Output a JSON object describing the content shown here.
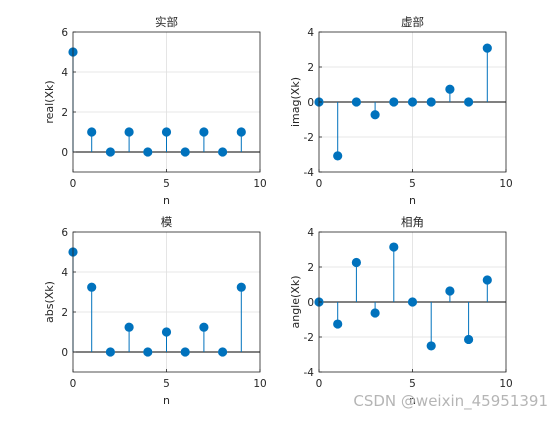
{
  "chart_data": [
    {
      "type": "stem",
      "title": "实部",
      "xlabel": "n",
      "ylabel": "real(Xk)",
      "xlim": [
        0,
        10
      ],
      "ylim": [
        -1,
        6
      ],
      "xticks": [
        0,
        5,
        10
      ],
      "yticks": [
        0,
        2,
        4,
        6
      ],
      "grid": true,
      "baseline": 0,
      "x": [
        0,
        1,
        2,
        3,
        4,
        5,
        6,
        7,
        8,
        9
      ],
      "y": [
        5,
        1,
        0,
        1,
        0,
        1,
        0,
        1,
        0,
        1
      ]
    },
    {
      "type": "stem",
      "title": "虚部",
      "xlabel": "n",
      "ylabel": "imag(Xk)",
      "xlim": [
        0,
        10
      ],
      "ylim": [
        -4,
        4
      ],
      "xticks": [
        0,
        5,
        10
      ],
      "yticks": [
        -4,
        -2,
        0,
        2,
        4
      ],
      "grid": true,
      "baseline": 0,
      "x": [
        0,
        1,
        2,
        3,
        4,
        5,
        6,
        7,
        8,
        9
      ],
      "y": [
        0,
        -3.08,
        0,
        -0.73,
        0,
        0,
        0,
        0.73,
        0,
        3.08
      ]
    },
    {
      "type": "stem",
      "title": "模",
      "xlabel": "n",
      "ylabel": "abs(Xk)",
      "xlim": [
        0,
        10
      ],
      "ylim": [
        -1,
        6
      ],
      "xticks": [
        0,
        5,
        10
      ],
      "yticks": [
        0,
        2,
        4,
        6
      ],
      "grid": true,
      "baseline": 0,
      "x": [
        0,
        1,
        2,
        3,
        4,
        5,
        6,
        7,
        8,
        9
      ],
      "y": [
        5,
        3.24,
        0,
        1.24,
        0,
        1,
        0,
        1.24,
        0,
        3.24
      ]
    },
    {
      "type": "stem",
      "title": "相角",
      "xlabel": "n",
      "ylabel": "angle(Xk)",
      "xlim": [
        0,
        10
      ],
      "ylim": [
        -4,
        4
      ],
      "xticks": [
        0,
        5,
        10
      ],
      "yticks": [
        -4,
        -2,
        0,
        2,
        4
      ],
      "grid": true,
      "baseline": 0,
      "x": [
        0,
        1,
        2,
        3,
        4,
        5,
        6,
        7,
        8,
        9
      ],
      "y": [
        0,
        -1.26,
        2.26,
        -0.63,
        3.14,
        0,
        -2.51,
        0.63,
        -2.14,
        1.26
      ]
    }
  ],
  "colors": {
    "stem": "#0072bd",
    "axis": "#262626",
    "grid": "#dfdfdf",
    "baseline": "#000000"
  },
  "watermark": "CSDN @weixin_45951391"
}
